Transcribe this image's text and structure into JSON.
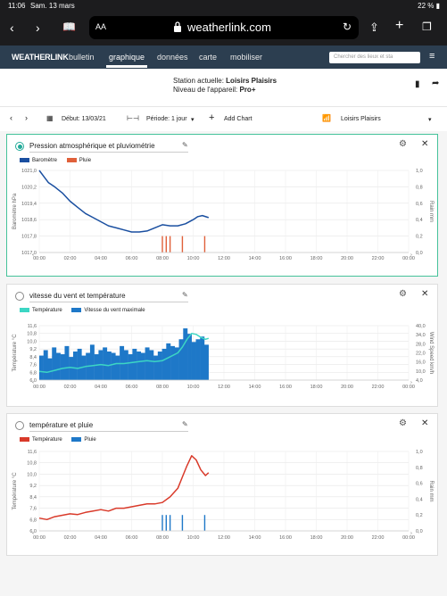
{
  "status": {
    "time": "11:06",
    "date": "Sam. 13 mars",
    "battery": "22 %"
  },
  "browser": {
    "aa": "AA",
    "url": "weatherlink.com"
  },
  "nav": {
    "logo": "WEATHERLINK",
    "items": [
      "bulletin",
      "graphique",
      "données",
      "carte",
      "mobiliser"
    ],
    "search_placeholder": "Chercher des lieux et sta"
  },
  "station": {
    "current_label": "Station actuelle:",
    "current_value": "Loisirs Plaisirs",
    "level_label": "Niveau de l'appareil:",
    "level_value": "Pro+"
  },
  "toolbar": {
    "start": "Début: 13/03/21",
    "period": "Période: 1 jour",
    "add_chart": "Add Chart",
    "station": "Loisirs Plaisirs"
  },
  "x_ticks": [
    "00:00",
    "02:00",
    "04:00",
    "06:00",
    "08:00",
    "10:00",
    "12:00",
    "14:00",
    "16:00",
    "18:00",
    "20:00",
    "22:00",
    "00:00"
  ],
  "colors": {
    "baro": "#1a4fa0",
    "pluie_red": "#e0603a",
    "temp_teal": "#3cd6c4",
    "wind_blue": "#1e78c8",
    "temp_red": "#d93a2a",
    "pluie_blue": "#1e78c8",
    "accent": "#2a9"
  },
  "chart_data": [
    {
      "type": "line",
      "title": "Pression atmosphérique et pluviométrie",
      "ylabel": "Baromètre hPa",
      "y2label": "Rain mm",
      "ylim": [
        1017.0,
        1021.0
      ],
      "y2lim": [
        0,
        1.0
      ],
      "yticks": [
        "1021,0",
        "1020,2",
        "1019,4",
        "1018,6",
        "1017,8",
        "1017,0"
      ],
      "y2ticks": [
        "1,0",
        "0,8",
        "0,6",
        "0,4",
        "0,2",
        "0,0"
      ],
      "series": [
        {
          "name": "Baromètre",
          "x": [
            0.0,
            0.3,
            0.6,
            1.0,
            1.5,
            2.0,
            2.5,
            3.0,
            3.5,
            4.0,
            4.5,
            5.0,
            5.5,
            6.0,
            6.5,
            7.0,
            7.5,
            8.0,
            8.5,
            9.0,
            9.5,
            10.0,
            10.3,
            10.6,
            11.0
          ],
          "values": [
            1021.0,
            1020.7,
            1020.4,
            1020.2,
            1019.9,
            1019.5,
            1019.2,
            1018.9,
            1018.7,
            1018.5,
            1018.3,
            1018.2,
            1018.1,
            1018.0,
            1018.0,
            1018.05,
            1018.2,
            1018.35,
            1018.3,
            1018.3,
            1018.4,
            1018.6,
            1018.75,
            1018.8,
            1018.7
          ]
        },
        {
          "name": "Pluie",
          "type": "bar",
          "x": [
            8.0,
            8.25,
            8.5,
            9.3,
            10.75
          ],
          "values": [
            0.2,
            0.2,
            0.2,
            0.2,
            0.2
          ]
        }
      ]
    },
    {
      "type": "line",
      "title": "vitesse du vent et température",
      "ylabel": "Température °C",
      "y2label": "Wind Speed km/h",
      "ylim": [
        6.0,
        11.6
      ],
      "y2lim": [
        0,
        40
      ],
      "yticks": [
        "11,6",
        "10,8",
        "10,0",
        "9,2",
        "8,4",
        "7,6",
        "6,8",
        "6,0"
      ],
      "y2ticks": [
        "40,0",
        "34,0",
        "28,0",
        "22,0",
        "16,0",
        "10,0",
        "4,0"
      ],
      "series": [
        {
          "name": "Température",
          "x": [
            0.0,
            0.5,
            1.0,
            1.5,
            2.0,
            2.5,
            3.0,
            3.5,
            4.0,
            4.5,
            5.0,
            5.5,
            6.0,
            6.5,
            7.0,
            7.5,
            8.0,
            8.5,
            9.0,
            9.3,
            9.6,
            9.9,
            10.2,
            10.5,
            10.8,
            11.0
          ],
          "values": [
            6.9,
            6.8,
            7.0,
            7.2,
            7.3,
            7.2,
            7.4,
            7.5,
            7.6,
            7.5,
            7.7,
            7.7,
            7.8,
            7.9,
            8.0,
            7.9,
            8.0,
            8.4,
            8.8,
            9.4,
            10.2,
            10.8,
            10.7,
            10.4,
            10.2,
            10.3
          ]
        },
        {
          "name": "Vitesse du vent maximale",
          "type": "bar",
          "x_range": [
            0,
            11
          ],
          "values": [
            18,
            22,
            16,
            24,
            20,
            19,
            25,
            17,
            21,
            23,
            18,
            20,
            26,
            19,
            22,
            24,
            21,
            20,
            18,
            25,
            22,
            19,
            23,
            21,
            20,
            24,
            22,
            18,
            21,
            23,
            27,
            25,
            24,
            30,
            38,
            34,
            28,
            30,
            32,
            26
          ]
        }
      ]
    },
    {
      "type": "line",
      "title": "température et pluie",
      "ylabel": "Température °C",
      "y2label": "Rain mm",
      "ylim": [
        6.0,
        11.6
      ],
      "y2lim": [
        0,
        1.0
      ],
      "yticks": [
        "11,6",
        "10,8",
        "10,0",
        "9,2",
        "8,4",
        "7,6",
        "6,8",
        "6,0"
      ],
      "y2ticks": [
        "1,0",
        "0,8",
        "0,6",
        "0,4",
        "0,2",
        "0,0"
      ],
      "series": [
        {
          "name": "Température",
          "x": [
            0.0,
            0.5,
            1.0,
            1.5,
            2.0,
            2.5,
            3.0,
            3.5,
            4.0,
            4.5,
            5.0,
            5.5,
            6.0,
            6.5,
            7.0,
            7.5,
            8.0,
            8.5,
            9.0,
            9.3,
            9.6,
            9.9,
            10.2,
            10.5,
            10.8,
            11.0
          ],
          "values": [
            6.9,
            6.8,
            7.0,
            7.1,
            7.2,
            7.15,
            7.3,
            7.4,
            7.5,
            7.4,
            7.6,
            7.6,
            7.7,
            7.8,
            7.9,
            7.9,
            8.0,
            8.4,
            9.0,
            9.8,
            10.6,
            11.3,
            11.0,
            10.3,
            9.9,
            10.1
          ]
        },
        {
          "name": "Pluie",
          "type": "bar",
          "x": [
            8.0,
            8.25,
            8.5,
            9.3,
            10.75
          ],
          "values": [
            0.2,
            0.2,
            0.2,
            0.2,
            0.2
          ]
        }
      ]
    }
  ]
}
